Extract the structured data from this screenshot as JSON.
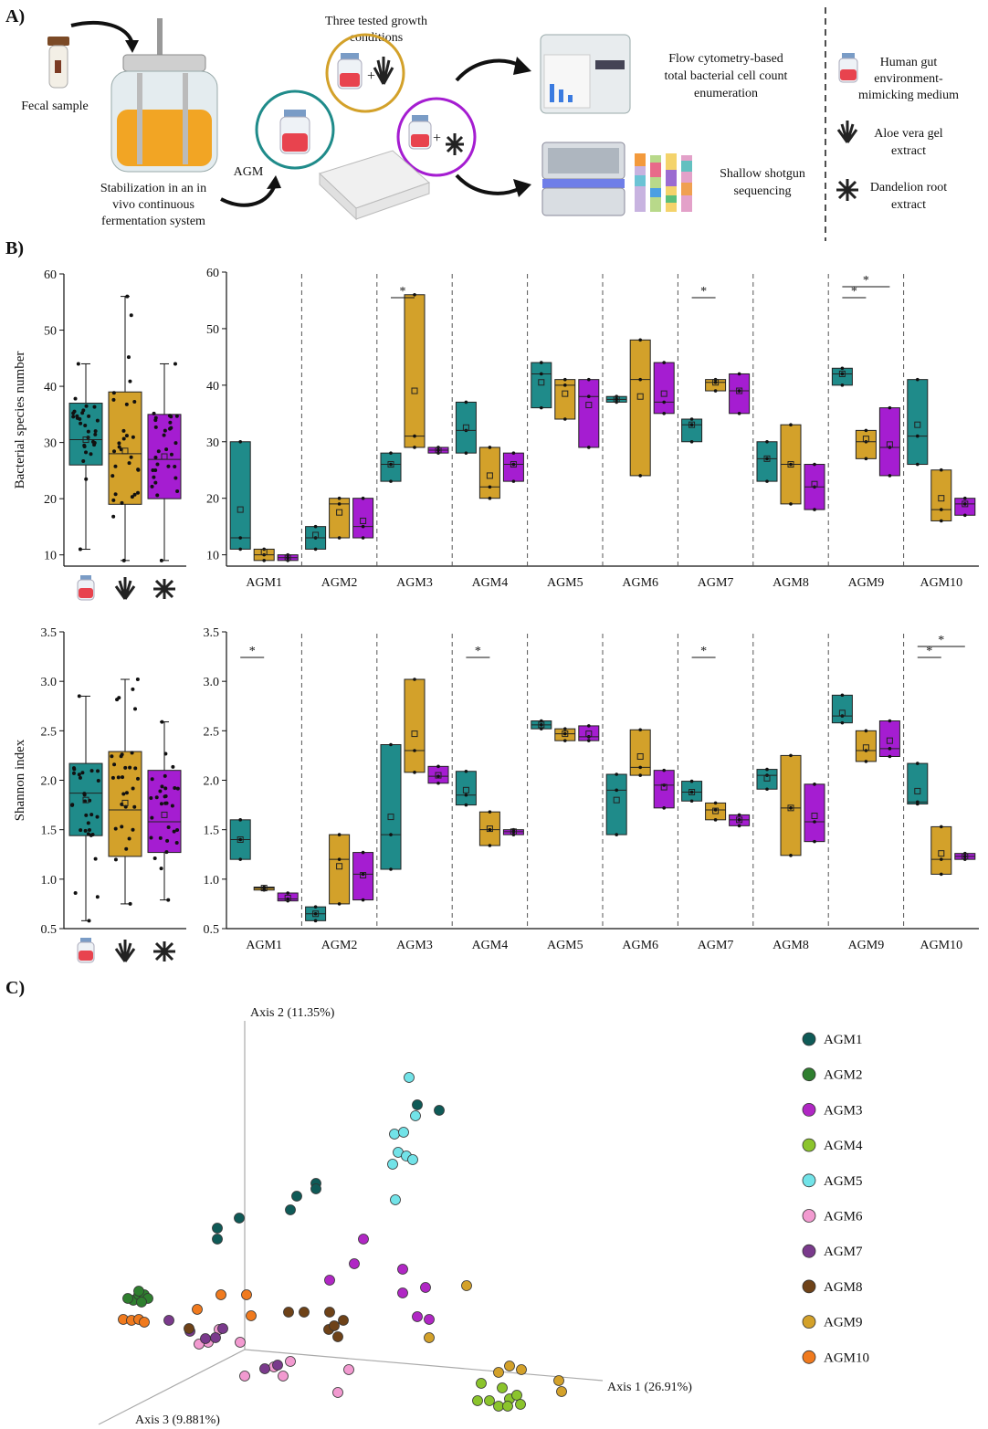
{
  "panel_labels": {
    "a": "A)",
    "b": "B)",
    "c": "C)"
  },
  "panel_a": {
    "fecal_sample": "Fecal sample",
    "stabilization": [
      "Stabilization in an in",
      "vivo continuous",
      "fermentation system"
    ],
    "agm": "AGM",
    "conditions": [
      "Three tested growth",
      "conditions"
    ],
    "flow": [
      "Flow cytometry-based",
      "total bacterial cell count",
      "enumeration"
    ],
    "shotgun": [
      "Shallow shotgun",
      "sequencing"
    ],
    "legend": {
      "medium": [
        "Human gut",
        "environment-",
        "mimicking medium"
      ],
      "aloe": [
        "Aloe vera gel",
        "extract"
      ],
      "dandelion": [
        "Dandelion root",
        "extract"
      ]
    }
  },
  "colors": {
    "medium": "#1f8b8a",
    "aloe": "#d3a12a",
    "dandelion": "#a51dd1"
  },
  "chart_data": [
    {
      "type": "box",
      "id": "species_overall",
      "ylabel": "Bacterial species number",
      "ylim": [
        8,
        60
      ],
      "yticks": [
        "10",
        "20",
        "30",
        "40",
        "50",
        "60"
      ],
      "groups": [
        "Human gut environment-mimicking medium",
        "Aloe vera gel extract",
        "Dandelion root extract"
      ],
      "boxes": [
        {
          "min": 11,
          "q1": 26,
          "median": 30.5,
          "q3": 37,
          "max": 44,
          "mean": 30.5
        },
        {
          "min": 9,
          "q1": 19,
          "median": 28,
          "q3": 39,
          "max": 56,
          "mean": 28.5
        },
        {
          "min": 9,
          "q1": 20,
          "median": 27,
          "q3": 35,
          "max": 44,
          "mean": 27.5
        }
      ]
    },
    {
      "type": "floating-bar",
      "id": "species_by_agm",
      "ylim": [
        8,
        60
      ],
      "yticks": [
        "10",
        "20",
        "30",
        "40",
        "50",
        "60"
      ],
      "categories": [
        "AGM1",
        "AGM2",
        "AGM3",
        "AGM4",
        "AGM5",
        "AGM6",
        "AGM7",
        "AGM8",
        "AGM9",
        "AGM10"
      ],
      "significance_marker": "*",
      "series": [
        {
          "name": "Human gut environment-mimicking medium",
          "ranges": [
            [
              11,
              30,
              13,
              18
            ],
            [
              11,
              15,
              13,
              13.5
            ],
            [
              23,
              28,
              26,
              26
            ],
            [
              28,
              37,
              32,
              32.5
            ],
            [
              36,
              44,
              42,
              40.5
            ],
            [
              37,
              38,
              37.5,
              37.5
            ],
            [
              30,
              34,
              33,
              33
            ],
            [
              23,
              30,
              27,
              27
            ],
            [
              40,
              43,
              42,
              42
            ],
            [
              26,
              41,
              31,
              33
            ]
          ]
        },
        {
          "name": "Aloe vera gel extract",
          "ranges": [
            [
              9,
              11,
              10,
              10.5
            ],
            [
              13,
              20,
              19,
              17.5
            ],
            [
              29,
              56,
              31,
              39
            ],
            [
              20,
              29,
              22,
              24
            ],
            [
              34,
              41,
              40,
              38.5
            ],
            [
              24,
              48,
              41,
              38
            ],
            [
              39,
              41,
              40.5,
              40.5
            ],
            [
              19,
              33,
              26,
              26
            ],
            [
              27,
              32,
              30,
              30.5
            ],
            [
              16,
              25,
              18,
              20
            ]
          ]
        },
        {
          "name": "Dandelion root extract",
          "ranges": [
            [
              9,
              10,
              9.5,
              9.5
            ],
            [
              13,
              20,
              15,
              16
            ],
            [
              28,
              29,
              28.5,
              28.5
            ],
            [
              23,
              28,
              26,
              26
            ],
            [
              29,
              41,
              38,
              36.5
            ],
            [
              35,
              44,
              37,
              38.5
            ],
            [
              35,
              42,
              39,
              39
            ],
            [
              18,
              26,
              22,
              22.5
            ],
            [
              24,
              36,
              29,
              29.5
            ],
            [
              17,
              20,
              19,
              19
            ]
          ]
        }
      ],
      "sig": [
        {
          "agm": 2,
          "from": 0,
          "to": 1,
          "level": 0
        },
        {
          "agm": 6,
          "from": 0,
          "to": 1,
          "level": 0
        },
        {
          "agm": 8,
          "from": 0,
          "to": 1,
          "level": 0
        },
        {
          "agm": 8,
          "from": 0,
          "to": 2,
          "level": 1
        }
      ]
    },
    {
      "type": "box",
      "id": "shannon_overall",
      "ylabel": "Shannon index",
      "ylim": [
        0.5,
        3.5
      ],
      "yticks": [
        "0.5",
        "1.0",
        "1.5",
        "2.0",
        "2.5",
        "3.0",
        "3.5"
      ],
      "groups": [
        "Human gut environment-mimicking medium",
        "Aloe vera gel extract",
        "Dandelion root extract"
      ],
      "boxes": [
        {
          "min": 0.58,
          "q1": 1.44,
          "median": 1.87,
          "q3": 2.17,
          "max": 2.85,
          "mean": 1.8
        },
        {
          "min": 0.75,
          "q1": 1.23,
          "median": 1.7,
          "q3": 2.29,
          "max": 3.02,
          "mean": 1.77
        },
        {
          "min": 0.79,
          "q1": 1.27,
          "median": 1.58,
          "q3": 2.1,
          "max": 2.59,
          "mean": 1.65
        }
      ]
    },
    {
      "type": "floating-bar",
      "id": "shannon_by_agm",
      "ylim": [
        0.5,
        3.5
      ],
      "yticks": [
        "0.5",
        "1.0",
        "1.5",
        "2.0",
        "2.5",
        "3.0",
        "3.5"
      ],
      "categories": [
        "AGM1",
        "AGM2",
        "AGM3",
        "AGM4",
        "AGM5",
        "AGM6",
        "AGM7",
        "AGM8",
        "AGM9",
        "AGM10"
      ],
      "significance_marker": "*",
      "series": [
        {
          "name": "Human gut environment-mimicking medium",
          "ranges": [
            [
              1.2,
              1.6,
              1.4,
              1.4
            ],
            [
              0.58,
              0.72,
              0.65,
              0.65
            ],
            [
              1.1,
              2.36,
              1.45,
              1.63
            ],
            [
              1.75,
              2.09,
              1.85,
              1.9
            ],
            [
              2.52,
              2.6,
              2.56,
              2.56
            ],
            [
              1.45,
              2.06,
              1.9,
              1.8
            ],
            [
              1.79,
              1.99,
              1.88,
              1.88
            ],
            [
              1.91,
              2.11,
              2.05,
              2.02
            ],
            [
              2.58,
              2.86,
              2.65,
              2.68
            ],
            [
              1.76,
              2.17,
              1.78,
              1.89
            ]
          ]
        },
        {
          "name": "Aloe vera gel extract",
          "ranges": [
            [
              0.89,
              0.92,
              0.91,
              0.91
            ],
            [
              0.75,
              1.45,
              1.2,
              1.13
            ],
            [
              2.08,
              3.02,
              2.3,
              2.47
            ],
            [
              1.34,
              1.68,
              1.5,
              1.51
            ],
            [
              2.4,
              2.52,
              2.47,
              2.47
            ],
            [
              2.05,
              2.51,
              2.13,
              2.24
            ],
            [
              1.6,
              1.77,
              1.7,
              1.69
            ],
            [
              1.24,
              2.25,
              1.72,
              1.72
            ],
            [
              2.19,
              2.5,
              2.3,
              2.33
            ],
            [
              1.05,
              1.53,
              1.2,
              1.26
            ]
          ]
        },
        {
          "name": "Dandelion root extract",
          "ranges": [
            [
              0.78,
              0.86,
              0.8,
              0.81
            ],
            [
              0.79,
              1.27,
              1.05,
              1.04
            ],
            [
              1.97,
              2.14,
              2.04,
              2.05
            ],
            [
              1.45,
              1.5,
              1.48,
              1.48
            ],
            [
              2.4,
              2.55,
              2.44,
              2.47
            ],
            [
              1.72,
              2.1,
              1.95,
              1.93
            ],
            [
              1.54,
              1.65,
              1.6,
              1.6
            ],
            [
              1.38,
              1.96,
              1.58,
              1.64
            ],
            [
              2.24,
              2.6,
              2.32,
              2.4
            ],
            [
              1.2,
              1.26,
              1.23,
              1.23
            ]
          ]
        }
      ],
      "sig": [
        {
          "agm": 0,
          "from": 0,
          "to": 1,
          "level": 0
        },
        {
          "agm": 3,
          "from": 0,
          "to": 1,
          "level": 0
        },
        {
          "agm": 6,
          "from": 0,
          "to": 1,
          "level": 0
        },
        {
          "agm": 9,
          "from": 0,
          "to": 1,
          "level": 0
        },
        {
          "agm": 9,
          "from": 0,
          "to": 2,
          "level": 1
        }
      ]
    },
    {
      "type": "scatter3d",
      "id": "pcoa",
      "axes": [
        "Axis 1 (26.91%)",
        "Axis 2 (11.35%)",
        "Axis 3 (9.881%)"
      ],
      "legend": [
        {
          "label": "AGM1",
          "color": "#0f5a57"
        },
        {
          "label": "AGM2",
          "color": "#2f7f2f"
        },
        {
          "label": "AGM3",
          "color": "#b027c4"
        },
        {
          "label": "AGM4",
          "color": "#8bc42c"
        },
        {
          "label": "AGM5",
          "color": "#72e3e8"
        },
        {
          "label": "AGM6",
          "color": "#f29ad0"
        },
        {
          "label": "AGM7",
          "color": "#7a3a8c"
        },
        {
          "label": "AGM8",
          "color": "#6e4218"
        },
        {
          "label": "AGM9",
          "color": "#d3a12a"
        },
        {
          "label": "AGM10",
          "color": "#f07a1e"
        }
      ]
    }
  ]
}
